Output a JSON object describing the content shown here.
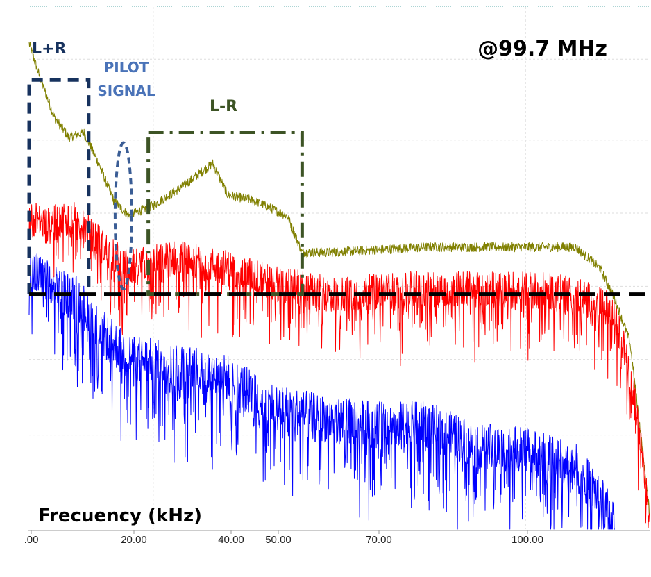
{
  "chart_data": {
    "type": "line",
    "title": "@99.7 MHz",
    "xlabel": "Frecuency (kHz)",
    "ylabel": "",
    "xlim": [
      0,
      125
    ],
    "ylim": [
      0,
      1
    ],
    "x_ticks": [
      ".00",
      "20.00",
      "40.00",
      "50.00",
      "70.00",
      "100.00"
    ],
    "grid": true,
    "series": [
      {
        "color": "#808000",
        "style": "noisy-spectrum",
        "points": [
          [
            0,
            0.93
          ],
          [
            2,
            0.87
          ],
          [
            5,
            0.79
          ],
          [
            8,
            0.75
          ],
          [
            11,
            0.76
          ],
          [
            14,
            0.7
          ],
          [
            17,
            0.63
          ],
          [
            20,
            0.6
          ],
          [
            25,
            0.62
          ],
          [
            30,
            0.65
          ],
          [
            37,
            0.7
          ],
          [
            40,
            0.64
          ],
          [
            45,
            0.63
          ],
          [
            52,
            0.6
          ],
          [
            55,
            0.53
          ],
          [
            60,
            0.53
          ],
          [
            80,
            0.54
          ],
          [
            100,
            0.54
          ],
          [
            110,
            0.54
          ],
          [
            115,
            0.5
          ],
          [
            118,
            0.44
          ],
          [
            121,
            0.36
          ],
          [
            123,
            0.2
          ],
          [
            125,
            0.03
          ]
        ]
      },
      {
        "color": "#ff0000",
        "style": "noisy-spectrum",
        "points": [
          [
            0,
            0.6
          ],
          [
            4,
            0.58
          ],
          [
            8,
            0.6
          ],
          [
            12,
            0.57
          ],
          [
            16,
            0.53
          ],
          [
            20,
            0.5
          ],
          [
            30,
            0.52
          ],
          [
            40,
            0.5
          ],
          [
            50,
            0.47
          ],
          [
            60,
            0.45
          ],
          [
            80,
            0.46
          ],
          [
            100,
            0.46
          ],
          [
            110,
            0.45
          ],
          [
            117,
            0.42
          ],
          [
            120,
            0.35
          ],
          [
            122,
            0.25
          ],
          [
            124,
            0.1
          ],
          [
            125,
            0.02
          ]
        ]
      },
      {
        "color": "#0000ff",
        "style": "noisy-spectrum",
        "points": [
          [
            0,
            0.5
          ],
          [
            5,
            0.46
          ],
          [
            10,
            0.44
          ],
          [
            14,
            0.38
          ],
          [
            20,
            0.33
          ],
          [
            30,
            0.31
          ],
          [
            40,
            0.29
          ],
          [
            48,
            0.24
          ],
          [
            60,
            0.21
          ],
          [
            70,
            0.2
          ],
          [
            80,
            0.2
          ],
          [
            90,
            0.16
          ],
          [
            100,
            0.15
          ],
          [
            110,
            0.12
          ],
          [
            115,
            0.06
          ],
          [
            118,
            0.01
          ]
        ]
      }
    ],
    "annotations": {
      "l_plus_r": {
        "label": "L+R",
        "x_range": [
          0,
          12
        ],
        "y_range": [
          0.45,
          0.86
        ],
        "color": "#17325e",
        "line": "dashed"
      },
      "pilot": {
        "label_lines": [
          "PILOT",
          "SIGNAL"
        ],
        "x_center": 19,
        "y_range": [
          0.46,
          0.74
        ],
        "color": "#3a5d95",
        "label_color": "#4a73b8",
        "line": "dashed"
      },
      "l_minus_r": {
        "label": "L-R",
        "x_range": [
          24,
          55
        ],
        "y_range": [
          0.45,
          0.76
        ],
        "color": "#3d5425",
        "line": "dash-dot"
      },
      "threshold": {
        "y": 0.45,
        "color": "#000000",
        "line": "dashed"
      }
    }
  }
}
